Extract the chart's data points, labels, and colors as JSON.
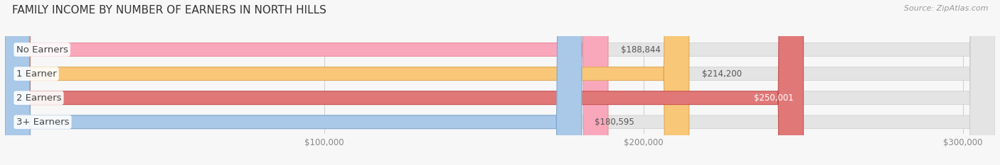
{
  "title": "FAMILY INCOME BY NUMBER OF EARNERS IN NORTH HILLS",
  "source": "Source: ZipAtlas.com",
  "categories": [
    "No Earners",
    "1 Earner",
    "2 Earners",
    "3+ Earners"
  ],
  "values": [
    188844,
    214200,
    250001,
    180595
  ],
  "bar_colors": [
    "#f9a8bc",
    "#f8c878",
    "#e07878",
    "#aac8e8"
  ],
  "bar_edge_colors": [
    "#e89098",
    "#e0a858",
    "#c85050",
    "#80a8d0"
  ],
  "label_colors": [
    "#555555",
    "#555555",
    "#ffffff",
    "#555555"
  ],
  "value_labels": [
    "$188,844",
    "$214,200",
    "$250,001",
    "$180,595"
  ],
  "background_color": "#f7f7f7",
  "track_color": "#e4e4e4",
  "xlim_min": 0,
  "xlim_max": 310000,
  "xticks": [
    100000,
    200000,
    300000
  ],
  "xticklabels": [
    "$100,000",
    "$200,000",
    "$300,000"
  ],
  "bar_height": 0.55,
  "title_fontsize": 11,
  "label_fontsize": 9.5,
  "value_fontsize": 8.5,
  "tick_fontsize": 8.5,
  "rounding_size": 8000
}
